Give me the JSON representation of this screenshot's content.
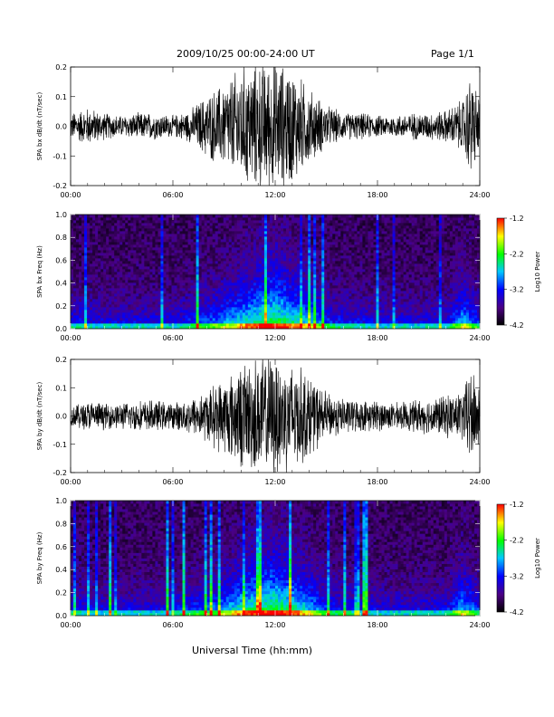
{
  "header": {
    "title": "2009/10/25  00:00-24:00 UT",
    "page": "Page 1/1"
  },
  "xaxis_title": "Universal Time (hh:mm)",
  "chart_data": [
    {
      "type": "line",
      "ylabel": "SPA bx dB/dt (nT/sec)",
      "ylim": [
        -0.2,
        0.2
      ],
      "yticks": [
        -0.2,
        -0.1,
        0.0,
        0.1,
        0.2
      ],
      "ytick_labels": [
        "-0.2",
        "-0.1",
        "0.0",
        "0.1",
        "0.2"
      ],
      "xlim_hours": [
        0,
        24
      ],
      "xticks": [
        "00:00",
        "06:00",
        "12:00",
        "18:00",
        "24:00"
      ],
      "envelope": {
        "hours": [
          0,
          1,
          2,
          3,
          4,
          5,
          6,
          7,
          8,
          9,
          10,
          11,
          12,
          13,
          14,
          15,
          16,
          17,
          18,
          19,
          20,
          21,
          22,
          23,
          23.5,
          24
        ],
        "amplitude": [
          0.05,
          0.07,
          0.05,
          0.04,
          0.05,
          0.05,
          0.04,
          0.06,
          0.12,
          0.16,
          0.22,
          0.24,
          0.24,
          0.22,
          0.14,
          0.08,
          0.05,
          0.05,
          0.04,
          0.04,
          0.05,
          0.05,
          0.06,
          0.1,
          0.2,
          0.1
        ]
      }
    },
    {
      "type": "heatmap",
      "ylabel": "SPA bx Freq (Hz)",
      "ylim": [
        0,
        1.0
      ],
      "yticks": [
        0.0,
        0.2,
        0.4,
        0.6,
        0.8,
        1.0
      ],
      "ytick_labels": [
        "0.0",
        "0.2",
        "0.4",
        "0.6",
        "0.8",
        "1.0"
      ],
      "xlim_hours": [
        0,
        24
      ],
      "xticks": [
        "00:00",
        "06:00",
        "12:00",
        "18:00",
        "24:00"
      ],
      "colorbar": {
        "label": "Log10 Power",
        "range": [
          -4.2,
          -1.2
        ],
        "ticks": [
          "-1.2",
          "-2.2",
          "-3.2",
          "-4.2"
        ],
        "colormap": [
          "#000000",
          "#4b0082",
          "#0000ff",
          "#00c8ff",
          "#00ff00",
          "#ffff00",
          "#ff0000"
        ]
      },
      "activity_hours": [
        0,
        2,
        4,
        6,
        8,
        9,
        10,
        11,
        12,
        13,
        14,
        15,
        16,
        18,
        20,
        22,
        23,
        24
      ],
      "activity_level": [
        0.35,
        0.3,
        0.3,
        0.3,
        0.45,
        0.55,
        0.65,
        0.75,
        0.8,
        0.7,
        0.6,
        0.4,
        0.35,
        0.3,
        0.3,
        0.32,
        0.6,
        0.4
      ]
    },
    {
      "type": "line",
      "ylabel": "SPA by dB/dt (nT/sec)",
      "ylim": [
        -0.2,
        0.2
      ],
      "yticks": [
        -0.2,
        -0.1,
        0.0,
        0.1,
        0.2
      ],
      "ytick_labels": [
        "-0.2",
        "-0.1",
        "0.0",
        "0.1",
        "0.2"
      ],
      "xlim_hours": [
        0,
        24
      ],
      "xticks": [
        "00:00",
        "06:00",
        "12:00",
        "18:00",
        "24:00"
      ],
      "envelope": {
        "hours": [
          0,
          1,
          2,
          3,
          4,
          5,
          6,
          7,
          8,
          9,
          10,
          11,
          12,
          13,
          14,
          15,
          16,
          17,
          18,
          19,
          20,
          21,
          22,
          23,
          23.5,
          24
        ],
        "amplitude": [
          0.04,
          0.06,
          0.05,
          0.05,
          0.06,
          0.06,
          0.05,
          0.07,
          0.1,
          0.15,
          0.2,
          0.24,
          0.24,
          0.22,
          0.16,
          0.09,
          0.07,
          0.06,
          0.06,
          0.05,
          0.06,
          0.07,
          0.08,
          0.1,
          0.2,
          0.12
        ]
      }
    },
    {
      "type": "heatmap",
      "ylabel": "SPA by Freq (Hz)",
      "ylim": [
        0,
        1.0
      ],
      "yticks": [
        0.0,
        0.2,
        0.4,
        0.6,
        0.8,
        1.0
      ],
      "ytick_labels": [
        "0.0",
        "0.2",
        "0.4",
        "0.6",
        "0.8",
        "1.0"
      ],
      "xlim_hours": [
        0,
        24
      ],
      "xticks": [
        "00:00",
        "06:00",
        "12:00",
        "18:00",
        "24:00"
      ],
      "colorbar": {
        "label": "Log10 Power",
        "range": [
          -4.2,
          -1.2
        ],
        "ticks": [
          "-1.2",
          "-2.2",
          "-3.2",
          "-4.2"
        ],
        "colormap": [
          "#000000",
          "#4b0082",
          "#0000ff",
          "#00c8ff",
          "#00ff00",
          "#ffff00",
          "#ff0000"
        ]
      },
      "activity_hours": [
        0,
        2,
        4,
        6,
        8,
        9,
        10,
        11,
        12,
        13,
        14,
        15,
        16,
        18,
        20,
        22,
        23,
        24
      ],
      "activity_level": [
        0.35,
        0.3,
        0.3,
        0.32,
        0.45,
        0.55,
        0.68,
        0.75,
        0.8,
        0.72,
        0.6,
        0.42,
        0.35,
        0.3,
        0.3,
        0.32,
        0.6,
        0.4
      ]
    }
  ]
}
